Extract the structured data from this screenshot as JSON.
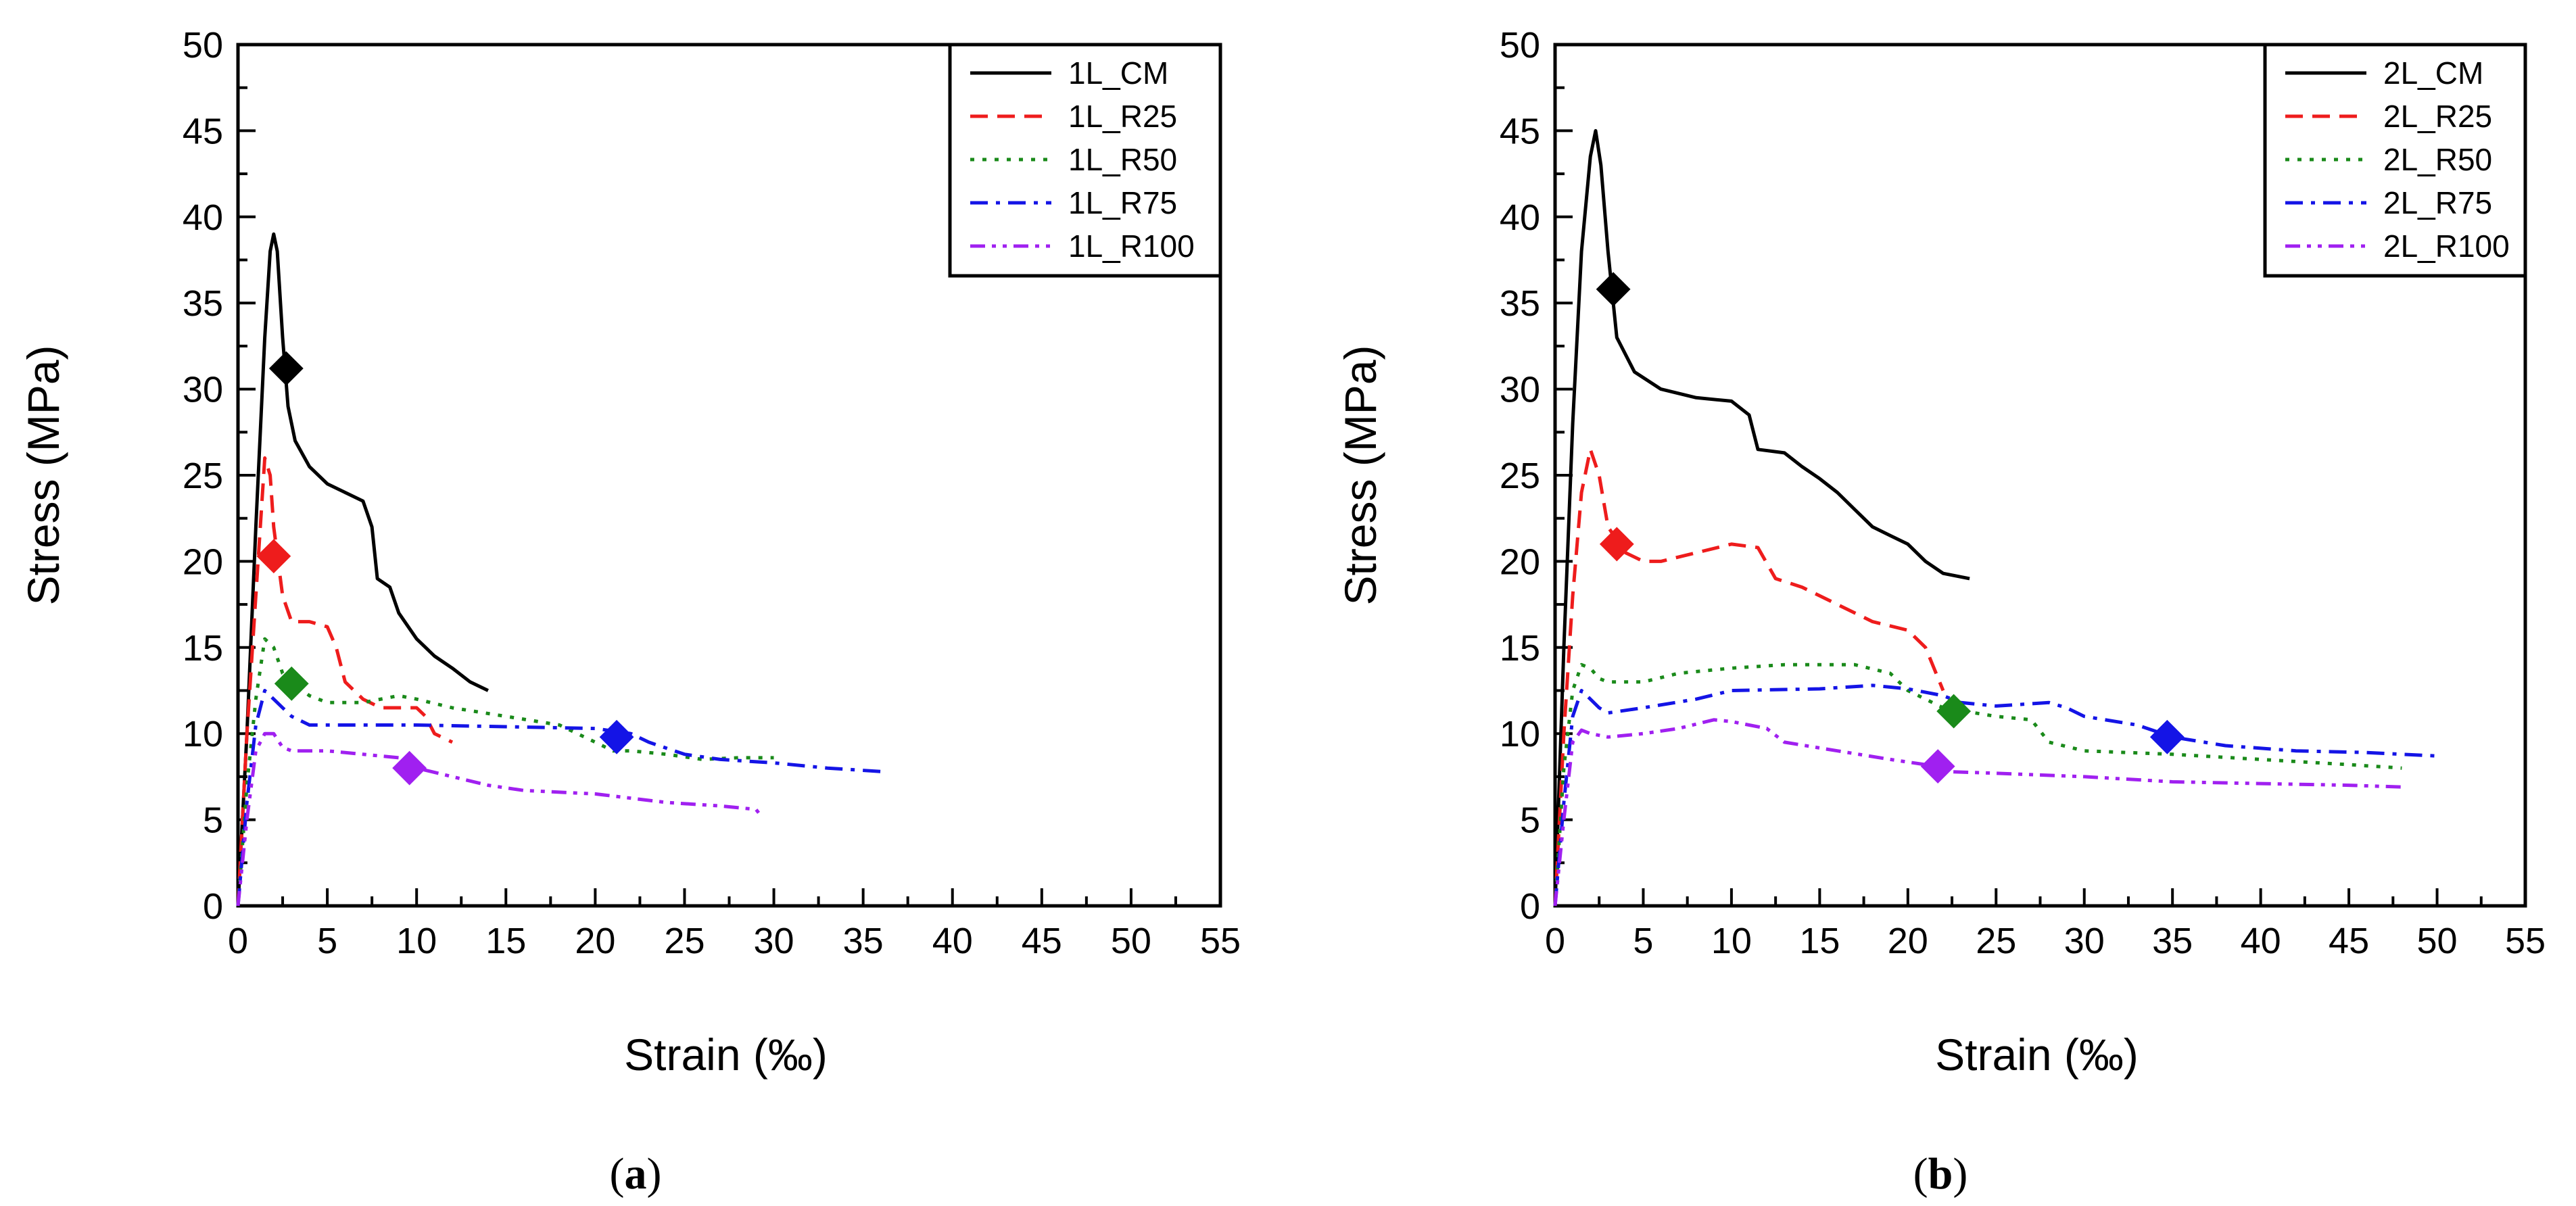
{
  "chart_data": [
    {
      "type": "line",
      "panel_label": "(a)",
      "panel_letter": "a",
      "xlabel": "Strain (‰)",
      "ylabel": "Stress (MPa)",
      "xlim": [
        0,
        55
      ],
      "ylim": [
        0,
        50
      ],
      "xticks": [
        0,
        5,
        10,
        15,
        20,
        25,
        30,
        35,
        40,
        45,
        50,
        55
      ],
      "yticks": [
        0,
        5,
        10,
        15,
        20,
        25,
        30,
        35,
        40,
        45,
        50
      ],
      "legend_position": "top-right",
      "series": [
        {
          "name": "1L_CM",
          "color": "#000000",
          "dash": "solid",
          "points": [
            [
              0,
              0
            ],
            [
              0.5,
              10
            ],
            [
              1,
              22
            ],
            [
              1.5,
              33
            ],
            [
              1.8,
              38
            ],
            [
              2,
              39
            ],
            [
              2.2,
              38
            ],
            [
              2.5,
              33
            ],
            [
              2.8,
              29
            ],
            [
              3.2,
              27
            ],
            [
              4,
              25.5
            ],
            [
              5,
              24.5
            ],
            [
              6,
              24
            ],
            [
              7,
              23.5
            ],
            [
              7.5,
              22
            ],
            [
              7.8,
              19
            ],
            [
              8.5,
              18.5
            ],
            [
              9,
              17
            ],
            [
              10,
              15.5
            ],
            [
              11,
              14.5
            ],
            [
              12,
              13.8
            ],
            [
              13,
              13
            ],
            [
              14,
              12.5
            ]
          ],
          "marker": [
            2.7,
            31.2
          ]
        },
        {
          "name": "1L_R25",
          "color": "#ee1c1c",
          "dash": "dashed",
          "points": [
            [
              0,
              0
            ],
            [
              0.5,
              10
            ],
            [
              1,
              18
            ],
            [
              1.5,
              26
            ],
            [
              1.8,
              25
            ],
            [
              2,
              22
            ],
            [
              2.5,
              18
            ],
            [
              3,
              16.5
            ],
            [
              4,
              16.5
            ],
            [
              5,
              16.2
            ],
            [
              5.5,
              15
            ],
            [
              6,
              13
            ],
            [
              7,
              12
            ],
            [
              8,
              11.5
            ],
            [
              10,
              11.5
            ],
            [
              10.5,
              11
            ],
            [
              11,
              10
            ],
            [
              12,
              9.5
            ]
          ],
          "marker": [
            2.0,
            20.3
          ]
        },
        {
          "name": "1L_R50",
          "color": "#1a8a1a",
          "dash": "dotted",
          "points": [
            [
              0,
              0
            ],
            [
              0.5,
              7
            ],
            [
              1,
              12
            ],
            [
              1.5,
              15.5
            ],
            [
              2,
              15
            ],
            [
              2.5,
              13.5
            ],
            [
              3,
              13
            ],
            [
              4,
              12.2
            ],
            [
              5,
              11.8
            ],
            [
              6,
              11.8
            ],
            [
              7,
              11.8
            ],
            [
              9,
              12.2
            ],
            [
              10,
              12
            ],
            [
              12,
              11.5
            ],
            [
              15,
              11
            ],
            [
              18,
              10.5
            ],
            [
              20,
              9.5
            ],
            [
              21,
              9
            ],
            [
              22,
              9
            ],
            [
              24,
              8.8
            ],
            [
              26,
              8.5
            ],
            [
              28,
              8.6
            ],
            [
              30,
              8.6
            ]
          ],
          "marker": [
            3.0,
            12.9
          ]
        },
        {
          "name": "1L_R75",
          "color": "#1414e6",
          "dash": "dashdot",
          "points": [
            [
              0,
              0
            ],
            [
              0.5,
              6
            ],
            [
              1,
              10.5
            ],
            [
              1.5,
              12.5
            ],
            [
              2,
              12
            ],
            [
              2.5,
              11.5
            ],
            [
              3,
              11
            ],
            [
              4,
              10.5
            ],
            [
              6,
              10.5
            ],
            [
              10,
              10.5
            ],
            [
              15,
              10.4
            ],
            [
              20,
              10.3
            ],
            [
              22,
              10
            ],
            [
              23,
              9.5
            ],
            [
              25,
              8.8
            ],
            [
              27,
              8.5
            ],
            [
              30,
              8.3
            ],
            [
              33,
              8
            ],
            [
              36,
              7.8
            ]
          ],
          "marker": [
            21.2,
            9.8
          ]
        },
        {
          "name": "1L_R100",
          "color": "#a020f0",
          "dash": "dashdotdot",
          "points": [
            [
              0,
              0
            ],
            [
              0.5,
              5
            ],
            [
              1,
              9
            ],
            [
              1.5,
              10
            ],
            [
              2,
              10
            ],
            [
              2.5,
              9.2
            ],
            [
              3,
              9
            ],
            [
              5,
              9
            ],
            [
              7,
              8.8
            ],
            [
              9,
              8.6
            ],
            [
              10,
              8
            ],
            [
              12,
              7.5
            ],
            [
              14,
              7
            ],
            [
              16,
              6.7
            ],
            [
              20,
              6.5
            ],
            [
              24,
              6
            ],
            [
              27,
              5.8
            ],
            [
              29,
              5.6
            ],
            [
              29.3,
              5.2
            ]
          ],
          "marker": [
            9.6,
            8.0
          ]
        }
      ]
    },
    {
      "type": "line",
      "panel_label": "(b)",
      "panel_letter": "b",
      "xlabel": "Strain (‰)",
      "ylabel": "Stress (MPa)",
      "xlim": [
        0,
        55
      ],
      "ylim": [
        0,
        50
      ],
      "xticks": [
        0,
        5,
        10,
        15,
        20,
        25,
        30,
        35,
        40,
        45,
        50,
        55
      ],
      "yticks": [
        0,
        5,
        10,
        15,
        20,
        25,
        30,
        35,
        40,
        45,
        50
      ],
      "legend_position": "top-right",
      "series": [
        {
          "name": "2L_CM",
          "color": "#000000",
          "dash": "solid",
          "points": [
            [
              0,
              0
            ],
            [
              0.5,
              15
            ],
            [
              1,
              28
            ],
            [
              1.5,
              38
            ],
            [
              2,
              43.5
            ],
            [
              2.3,
              45
            ],
            [
              2.6,
              43
            ],
            [
              3,
              38
            ],
            [
              3.5,
              33
            ],
            [
              4.5,
              31
            ],
            [
              6,
              30
            ],
            [
              8,
              29.5
            ],
            [
              10,
              29.3
            ],
            [
              11,
              28.5
            ],
            [
              11.5,
              26.5
            ],
            [
              13,
              26.3
            ],
            [
              14,
              25.5
            ],
            [
              15,
              24.8
            ],
            [
              16,
              24
            ],
            [
              17,
              23
            ],
            [
              18,
              22
            ],
            [
              19,
              21.5
            ],
            [
              20,
              21
            ],
            [
              21,
              20
            ],
            [
              22,
              19.3
            ],
            [
              23.5,
              19
            ]
          ],
          "marker": [
            3.3,
            35.8
          ]
        },
        {
          "name": "2L_R25",
          "color": "#ee1c1c",
          "dash": "dashed",
          "points": [
            [
              0,
              0
            ],
            [
              0.5,
              10
            ],
            [
              1,
              18
            ],
            [
              1.5,
              24
            ],
            [
              2,
              26.5
            ],
            [
              2.5,
              25
            ],
            [
              3,
              22
            ],
            [
              4,
              20.5
            ],
            [
              5,
              20
            ],
            [
              6,
              20
            ],
            [
              8,
              20.5
            ],
            [
              10,
              21
            ],
            [
              11.5,
              20.8
            ],
            [
              12.5,
              19
            ],
            [
              14,
              18.5
            ],
            [
              16,
              17.5
            ],
            [
              18,
              16.5
            ],
            [
              20,
              16
            ],
            [
              21,
              15
            ],
            [
              22,
              12.5
            ]
          ],
          "marker": [
            3.5,
            21.0
          ]
        },
        {
          "name": "2L_R50",
          "color": "#1a8a1a",
          "dash": "dotted",
          "points": [
            [
              0,
              0
            ],
            [
              0.5,
              8
            ],
            [
              1,
              12.5
            ],
            [
              1.5,
              14
            ],
            [
              2,
              13.8
            ],
            [
              2.5,
              13.2
            ],
            [
              3,
              13
            ],
            [
              5,
              13
            ],
            [
              7,
              13.5
            ],
            [
              10,
              13.8
            ],
            [
              13,
              14
            ],
            [
              17,
              14
            ],
            [
              19,
              13.5
            ],
            [
              20,
              12.5
            ],
            [
              22,
              11.5
            ],
            [
              25,
              11
            ],
            [
              27,
              10.8
            ],
            [
              28,
              9.5
            ],
            [
              30,
              9
            ],
            [
              35,
              8.8
            ],
            [
              40,
              8.5
            ],
            [
              45,
              8.2
            ],
            [
              48,
              8
            ]
          ],
          "marker": [
            22.6,
            11.3
          ]
        },
        {
          "name": "2L_R75",
          "color": "#1414e6",
          "dash": "dashdot",
          "points": [
            [
              0,
              0
            ],
            [
              0.5,
              6
            ],
            [
              1,
              11
            ],
            [
              1.5,
              12.5
            ],
            [
              2,
              12
            ],
            [
              2.5,
              11.5
            ],
            [
              3,
              11.2
            ],
            [
              5,
              11.5
            ],
            [
              8,
              12
            ],
            [
              10,
              12.5
            ],
            [
              15,
              12.6
            ],
            [
              18,
              12.8
            ],
            [
              20,
              12.6
            ],
            [
              22,
              12.2
            ],
            [
              23,
              11.8
            ],
            [
              25,
              11.6
            ],
            [
              28,
              11.8
            ],
            [
              29,
              11.5
            ],
            [
              30,
              11
            ],
            [
              33,
              10.5
            ],
            [
              35,
              9.8
            ],
            [
              38,
              9.3
            ],
            [
              42,
              9
            ],
            [
              46,
              8.9
            ],
            [
              50,
              8.7
            ]
          ],
          "marker": [
            34.7,
            9.8
          ]
        },
        {
          "name": "2L_R100",
          "color": "#a020f0",
          "dash": "dashdotdot",
          "points": [
            [
              0,
              0
            ],
            [
              0.5,
              5
            ],
            [
              1,
              9.5
            ],
            [
              1.5,
              10.2
            ],
            [
              2,
              10
            ],
            [
              3,
              9.8
            ],
            [
              5,
              10
            ],
            [
              7,
              10.3
            ],
            [
              9,
              10.8
            ],
            [
              10,
              10.7
            ],
            [
              12,
              10.3
            ],
            [
              13,
              9.5
            ],
            [
              16,
              9
            ],
            [
              19,
              8.5
            ],
            [
              21,
              8.2
            ],
            [
              22,
              7.8
            ],
            [
              25,
              7.7
            ],
            [
              30,
              7.5
            ],
            [
              35,
              7.2
            ],
            [
              40,
              7.1
            ],
            [
              45,
              7
            ],
            [
              48,
              6.9
            ]
          ],
          "marker": [
            21.7,
            8.1
          ]
        }
      ]
    }
  ]
}
